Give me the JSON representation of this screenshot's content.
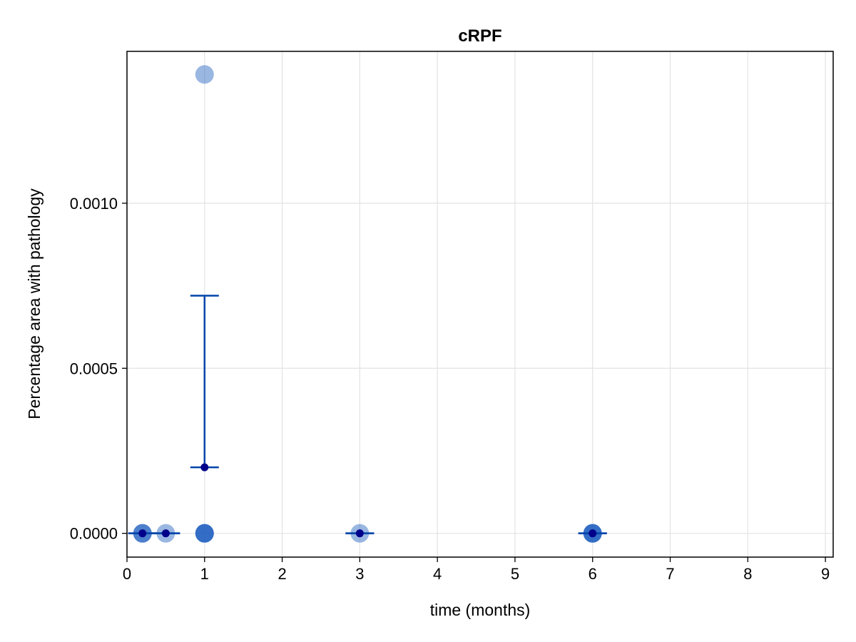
{
  "chart_data": {
    "type": "scatter",
    "title": "cRPF",
    "xlabel": "time (months)",
    "ylabel": "Percentage area with pathology",
    "xlim": [
      0,
      9.1
    ],
    "ylim": [
      -7.2e-05,
      0.00146
    ],
    "xticks": [
      0,
      1,
      2,
      3,
      4,
      5,
      6,
      7,
      8,
      9
    ],
    "xtick_labels": [
      "0",
      "1",
      "2",
      "3",
      "4",
      "5",
      "6",
      "7",
      "8",
      "9"
    ],
    "yticks": [
      0,
      0.0005,
      0.001
    ],
    "ytick_labels": [
      "0.0000",
      "0.0005",
      "0.0010"
    ],
    "grid": true,
    "legend": "none",
    "colors": {
      "individual": "#1f5fbf",
      "individual_light": "#9ab5e0",
      "mean_marker": "#00008b",
      "error_bar": "#0044aa",
      "grid": "#e3e3e3",
      "frame": "#000000"
    },
    "series": [
      {
        "role": "individual-observations",
        "points": [
          {
            "x": 0.2,
            "y": 0,
            "opacity": 0.55
          },
          {
            "x": 0.2,
            "y": 0,
            "opacity": 0.55
          },
          {
            "x": 0.5,
            "y": 0,
            "opacity": 0.45
          },
          {
            "x": 1,
            "y": 0,
            "opacity": 0.55
          },
          {
            "x": 1,
            "y": 0,
            "opacity": 0.55
          },
          {
            "x": 1,
            "y": 0,
            "opacity": 0.55
          },
          {
            "x": 1,
            "y": 0.00139,
            "opacity": 0.45
          },
          {
            "x": 3,
            "y": 0,
            "opacity": 0.45
          },
          {
            "x": 6,
            "y": 0,
            "opacity": 0.55
          },
          {
            "x": 6,
            "y": 0,
            "opacity": 0.55
          },
          {
            "x": 6,
            "y": 0,
            "opacity": 0.55
          }
        ]
      },
      {
        "role": "mean-with-error",
        "points": [
          {
            "x": 0.2,
            "y": 0,
            "lower": 0,
            "upper": 0
          },
          {
            "x": 0.5,
            "y": 0,
            "lower": 0,
            "upper": 0
          },
          {
            "x": 1,
            "y": 0.0002,
            "lower": 0.0002,
            "upper": 0.00072
          },
          {
            "x": 3,
            "y": 0,
            "lower": 0,
            "upper": 0
          },
          {
            "x": 6,
            "y": 0,
            "lower": 0,
            "upper": 0
          }
        ]
      }
    ]
  }
}
